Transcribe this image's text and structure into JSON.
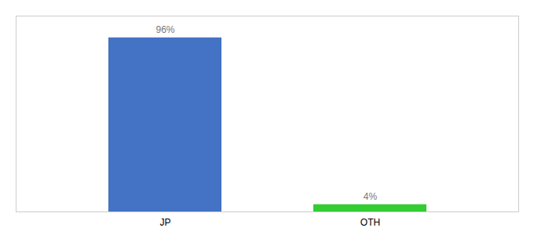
{
  "chart_data": {
    "type": "bar",
    "categories": [
      "JP",
      "OTH"
    ],
    "values": [
      96,
      4
    ],
    "value_labels": [
      "96%",
      "4%"
    ],
    "colors": [
      "#4472c4",
      "#33cc33"
    ],
    "ylim": [
      0,
      108
    ],
    "data_labels": true,
    "tick_labels": "x",
    "grid": false
  }
}
